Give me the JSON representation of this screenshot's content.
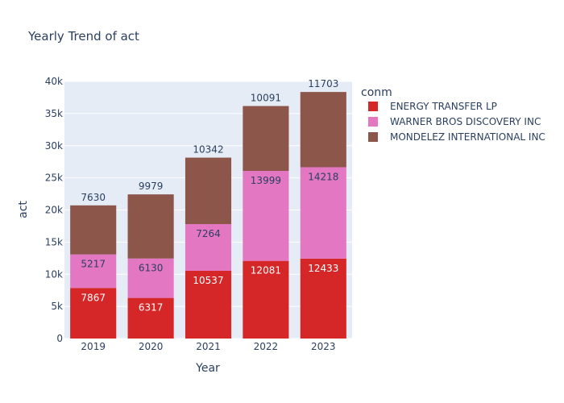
{
  "chart_data": {
    "type": "bar",
    "barmode": "stack",
    "title": "Yearly Trend of act",
    "xlabel": "Year",
    "ylabel": "act",
    "categories": [
      "2019",
      "2020",
      "2021",
      "2022",
      "2023"
    ],
    "ylim": [
      0,
      40000
    ],
    "yticks": [
      0,
      5000,
      10000,
      15000,
      20000,
      25000,
      30000,
      35000,
      40000
    ],
    "ytick_labels": [
      "0",
      "5k",
      "10k",
      "15k",
      "20k",
      "25k",
      "30k",
      "35k",
      "40k"
    ],
    "grid": true,
    "legend_title": "conm",
    "legend_position": "right",
    "series": [
      {
        "name": "ENERGY TRANSFER LP",
        "color": "#d62728",
        "label_color": "#ffffff",
        "values": [
          7867,
          6317,
          10537,
          12081,
          12433
        ]
      },
      {
        "name": "WARNER BROS DISCOVERY INC",
        "color": "#e377c2",
        "label_color": "#2a3f5f",
        "values": [
          5217,
          6130,
          7264,
          13999,
          14218
        ]
      },
      {
        "name": "MONDELEZ INTERNATIONAL INC",
        "color": "#8c564b",
        "label_color": "#2a3f5f",
        "values": [
          7630,
          9979,
          10342,
          10091,
          11703
        ]
      }
    ]
  },
  "colors": {
    "plot_bg": "#e5ecf6",
    "grid": "#ffffff",
    "text": "#2a3f5f"
  }
}
